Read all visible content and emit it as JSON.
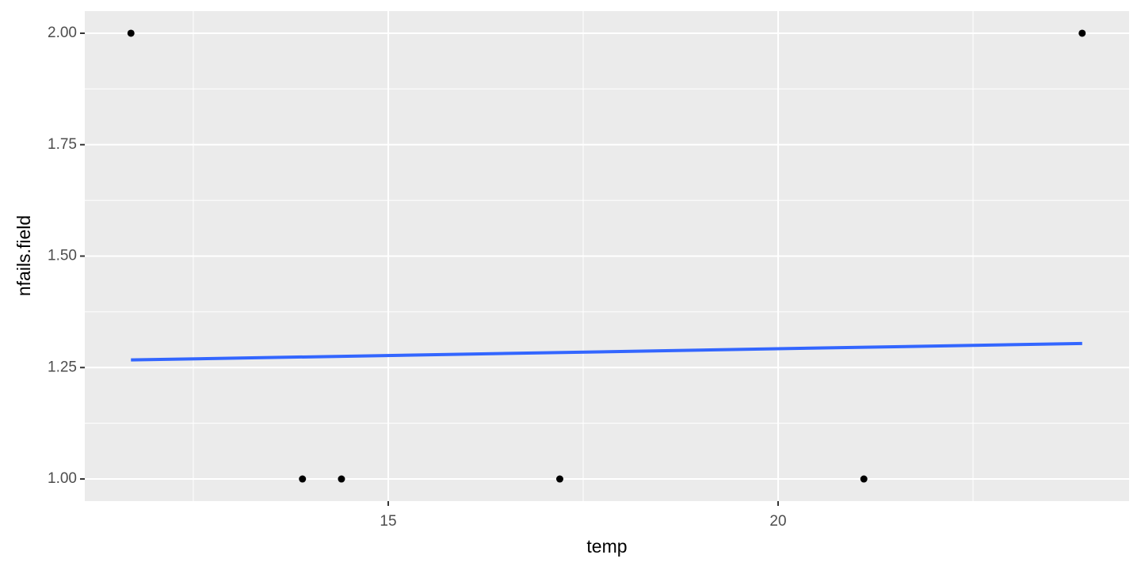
{
  "chart_data": {
    "type": "scatter",
    "x_label": "temp",
    "y_label": "nfails.field",
    "series": [
      {
        "color": "#000000",
        "x": [
          11.7,
          13.9,
          14.4,
          17.2,
          21.1,
          23.9
        ],
        "values": [
          2,
          1,
          1,
          1,
          1,
          2
        ]
      },
      {
        "type": "line",
        "color": "#3366ff",
        "x": [
          11.7,
          23.9
        ],
        "values": [
          1.267,
          1.304
        ]
      }
    ],
    "xlim": [
      11.108,
      24.502
    ],
    "ylim": [
      0.9503,
      2.0497
    ],
    "xticks": [
      15,
      20
    ],
    "yticks": [
      {
        "value": 1,
        "label": "1.00"
      },
      {
        "value": 1.25,
        "label": "1.25"
      },
      {
        "value": 1.5,
        "label": "1.50"
      },
      {
        "value": 1.75,
        "label": "1.75"
      },
      {
        "value": 2,
        "label": "2.00"
      }
    ],
    "xminor": [
      12.5,
      17.5,
      22.5
    ],
    "yminor": [
      1.125,
      1.375,
      1.625,
      1.875
    ],
    "grid": true,
    "panel_color": "#ebebeb"
  }
}
